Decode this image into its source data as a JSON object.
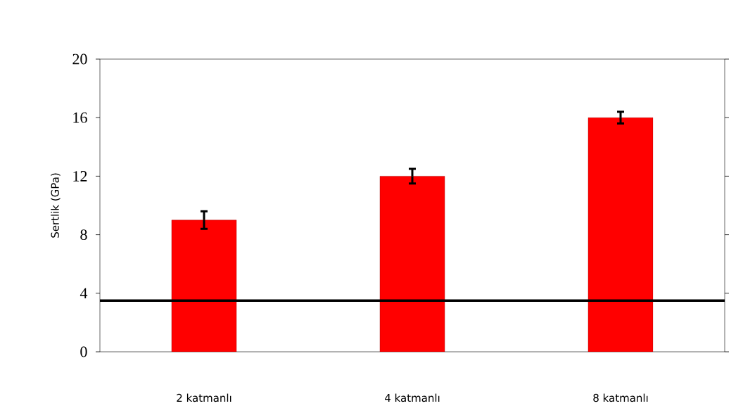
{
  "chart_data": {
    "type": "bar",
    "ylabel": "Sertlik (GPa)",
    "categories": [
      "2 katmanlı",
      "4 katmanlı",
      "8 katmanlı"
    ],
    "values": [
      9,
      12,
      16
    ],
    "errors": [
      0.6,
      0.5,
      0.4
    ],
    "color": "#ff0000",
    "ylim": [
      0,
      20
    ],
    "yticks": [
      0,
      4,
      8,
      12,
      16,
      20
    ],
    "ref_lines": [
      {
        "axis": "y",
        "value": 3.5,
        "color": "#000000"
      }
    ]
  }
}
